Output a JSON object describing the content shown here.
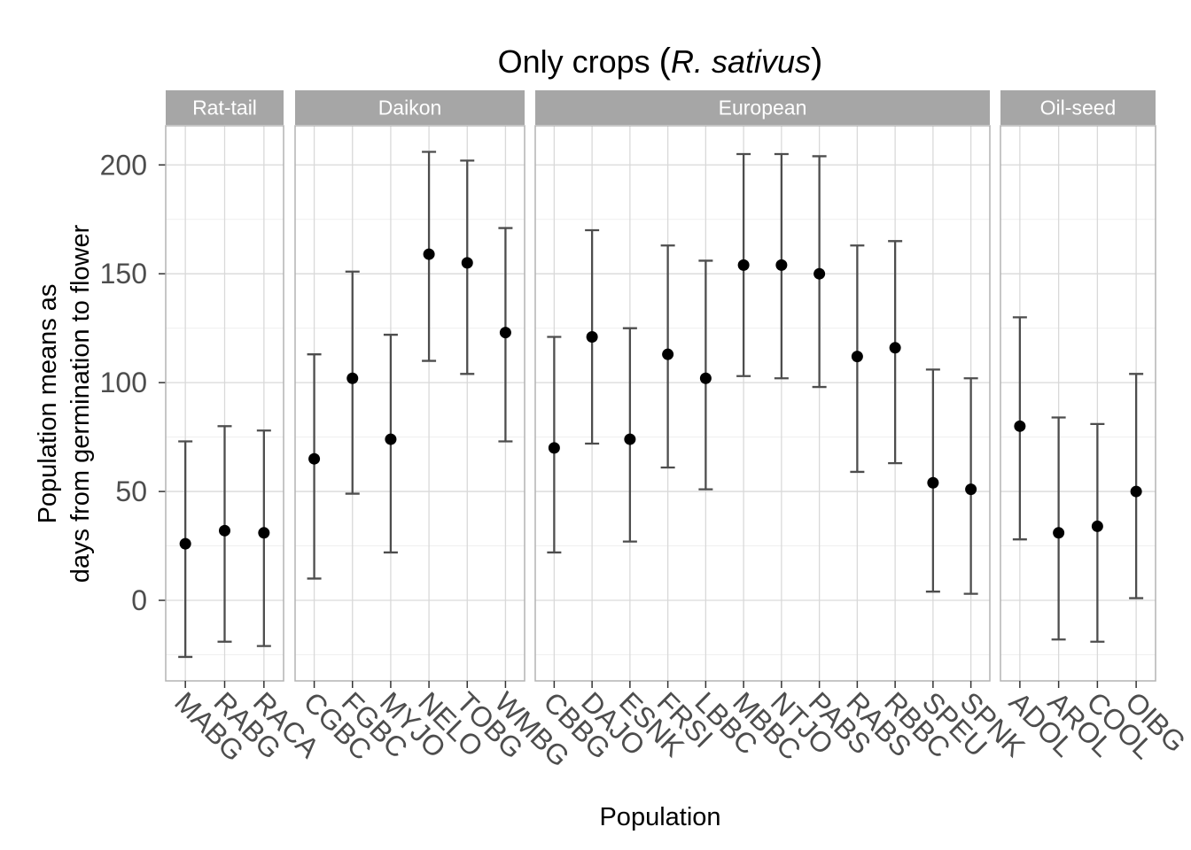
{
  "chart_data": {
    "type": "scatter",
    "title": "Only crops (R. sativus)",
    "title_parts": {
      "prefix": "Only crops ",
      "open": "(",
      "italic": "R. sativus",
      "close": ")"
    },
    "xlabel": "Population",
    "ylabel": [
      "Population means as",
      "days from germination to flower"
    ],
    "ylim": [
      -37,
      218
    ],
    "yticks": [
      0,
      50,
      100,
      150,
      200
    ],
    "grid": true,
    "error_bars": true,
    "colors": {
      "point": "#000000",
      "errorbar": "#4d4d4d",
      "strip_bg": "#a6a6a6",
      "grid_major": "#d9d9d9",
      "grid_minor": "#efefef",
      "panel_border": "#b3b3b3"
    },
    "facets": [
      {
        "name": "Rat-tail",
        "points": [
          {
            "x": "MABG",
            "y": 26,
            "ymin": -26,
            "ymax": 73
          },
          {
            "x": "RABG",
            "y": 32,
            "ymin": -19,
            "ymax": 80
          },
          {
            "x": "RACA",
            "y": 31,
            "ymin": -21,
            "ymax": 78
          }
        ]
      },
      {
        "name": "Daikon",
        "points": [
          {
            "x": "CGBC",
            "y": 65,
            "ymin": 10,
            "ymax": 113
          },
          {
            "x": "FGBC",
            "y": 102,
            "ymin": 49,
            "ymax": 151
          },
          {
            "x": "MYJO",
            "y": 74,
            "ymin": 22,
            "ymax": 122
          },
          {
            "x": "NELO",
            "y": 159,
            "ymin": 110,
            "ymax": 206
          },
          {
            "x": "TOBG",
            "y": 155,
            "ymin": 104,
            "ymax": 202
          },
          {
            "x": "WMBG",
            "y": 123,
            "ymin": 73,
            "ymax": 171
          }
        ]
      },
      {
        "name": "European",
        "points": [
          {
            "x": "CBBG",
            "y": 70,
            "ymin": 22,
            "ymax": 121
          },
          {
            "x": "DAJO",
            "y": 121,
            "ymin": 72,
            "ymax": 170
          },
          {
            "x": "ESNK",
            "y": 74,
            "ymin": 27,
            "ymax": 125
          },
          {
            "x": "FRSI",
            "y": 113,
            "ymin": 61,
            "ymax": 163
          },
          {
            "x": "LBBC",
            "y": 102,
            "ymin": 51,
            "ymax": 156
          },
          {
            "x": "MBBC",
            "y": 154,
            "ymin": 103,
            "ymax": 205
          },
          {
            "x": "NTJO",
            "y": 154,
            "ymin": 102,
            "ymax": 205
          },
          {
            "x": "PABS",
            "y": 150,
            "ymin": 98,
            "ymax": 204
          },
          {
            "x": "RABS",
            "y": 112,
            "ymin": 59,
            "ymax": 163
          },
          {
            "x": "RBBC",
            "y": 116,
            "ymin": 63,
            "ymax": 165
          },
          {
            "x": "SPEU",
            "y": 54,
            "ymin": 4,
            "ymax": 106
          },
          {
            "x": "SPNK",
            "y": 51,
            "ymin": 3,
            "ymax": 102
          }
        ]
      },
      {
        "name": "Oil-seed",
        "points": [
          {
            "x": "ADOL",
            "y": 80,
            "ymin": 28,
            "ymax": 130
          },
          {
            "x": "AROL",
            "y": 31,
            "ymin": -18,
            "ymax": 84
          },
          {
            "x": "COOL",
            "y": 34,
            "ymin": -19,
            "ymax": 81
          },
          {
            "x": "OIBG",
            "y": 50,
            "ymin": 1,
            "ymax": 104
          }
        ]
      }
    ]
  }
}
